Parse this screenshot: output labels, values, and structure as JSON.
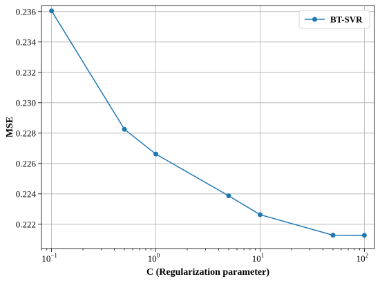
{
  "chart_data": {
    "type": "line",
    "x_scale": "log",
    "xlabel": "C (Regularization parameter)",
    "ylabel": "MSE",
    "xlim": [
      0.08,
      125
    ],
    "ylim": [
      0.2204,
      0.2364
    ],
    "x_ticks": [
      {
        "value": 0.1,
        "base": "10",
        "exp": "−1"
      },
      {
        "value": 1,
        "base": "10",
        "exp": "0"
      },
      {
        "value": 10,
        "base": "10",
        "exp": "1"
      },
      {
        "value": 100,
        "base": "10",
        "exp": "2"
      }
    ],
    "y_ticks": [
      "0.222",
      "0.224",
      "0.226",
      "0.228",
      "0.230",
      "0.232",
      "0.234",
      "0.236"
    ],
    "grid": true,
    "legend_position": "top-right",
    "series": [
      {
        "name": "BT-SVR",
        "color": "#1f77b4",
        "marker": "circle",
        "x": [
          0.1,
          0.5,
          1,
          5,
          10,
          50,
          100
        ],
        "y": [
          0.23605,
          0.22825,
          0.22662,
          0.22387,
          0.22263,
          0.22128,
          0.22127
        ]
      }
    ]
  }
}
